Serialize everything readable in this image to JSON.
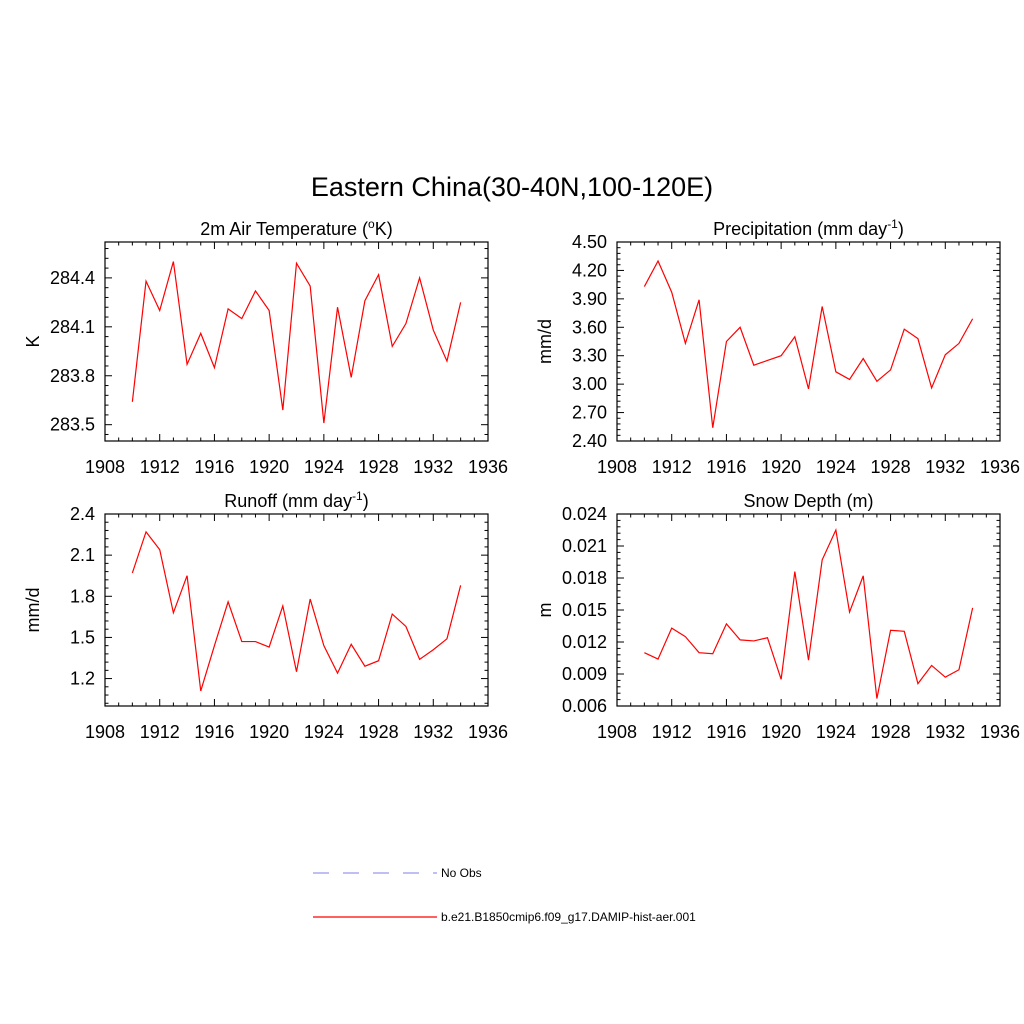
{
  "figure": {
    "title": "Eastern China(30-40N,100-120E)"
  },
  "legend": {
    "entries": [
      {
        "label": "No Obs",
        "color": "#9999ee",
        "style": "dashed"
      },
      {
        "label": "b.e21.B1850cmip6.f09_g17.DAMIP-hist-aer.001",
        "color": "#ff0000",
        "style": "solid"
      }
    ]
  },
  "chart_data": [
    {
      "type": "line",
      "title": "2m Air Temperature (°K)",
      "title_parts": [
        "2m Air Temperature (",
        "o",
        "K)"
      ],
      "xlabel": "",
      "ylabel": "K",
      "xlim": [
        1908,
        1936
      ],
      "ylim": [
        283.4,
        284.62
      ],
      "xticks": [
        1908,
        1912,
        1916,
        1920,
        1924,
        1928,
        1932,
        1936
      ],
      "yticks": [
        283.5,
        283.8,
        284.1,
        284.4
      ],
      "ytick_labels": [
        "283.5",
        "283.8",
        "284.1",
        "284.4"
      ],
      "grid": false,
      "series": [
        {
          "name": "b.e21.B1850cmip6.f09_g17.DAMIP-hist-aer.001",
          "color": "#ff0000",
          "x": [
            1910,
            1911,
            1912,
            1913,
            1914,
            1915,
            1916,
            1917,
            1918,
            1919,
            1920,
            1921,
            1922,
            1923,
            1924,
            1925,
            1926,
            1927,
            1928,
            1929,
            1930,
            1931,
            1932,
            1933,
            1934
          ],
          "y": [
            283.64,
            284.38,
            284.2,
            284.5,
            283.87,
            284.06,
            283.85,
            284.21,
            284.15,
            284.32,
            284.2,
            283.59,
            284.49,
            284.35,
            283.51,
            284.22,
            283.79,
            284.26,
            284.42,
            283.98,
            284.12,
            284.4,
            284.08,
            283.89,
            284.25
          ]
        }
      ]
    },
    {
      "type": "line",
      "title": "Precipitation (mm day-1)",
      "title_parts": [
        "Precipitation (mm day",
        "-1",
        ")"
      ],
      "xlabel": "",
      "ylabel": "mm/d",
      "xlim": [
        1908,
        1936
      ],
      "ylim": [
        2.4,
        4.5
      ],
      "xticks": [
        1908,
        1912,
        1916,
        1920,
        1924,
        1928,
        1932,
        1936
      ],
      "yticks": [
        2.4,
        2.7,
        3.0,
        3.3,
        3.6,
        3.9,
        4.2,
        4.5
      ],
      "ytick_labels": [
        "2.40",
        "2.70",
        "3.00",
        "3.30",
        "3.60",
        "3.90",
        "4.20",
        "4.50"
      ],
      "grid": false,
      "series": [
        {
          "name": "b.e21.B1850cmip6.f09_g17.DAMIP-hist-aer.001",
          "color": "#ff0000",
          "x": [
            1910,
            1911,
            1912,
            1913,
            1914,
            1915,
            1916,
            1917,
            1918,
            1919,
            1920,
            1921,
            1922,
            1923,
            1924,
            1925,
            1926,
            1927,
            1928,
            1929,
            1930,
            1931,
            1932,
            1933,
            1934
          ],
          "y": [
            4.03,
            4.3,
            3.97,
            3.43,
            3.89,
            2.54,
            3.45,
            3.6,
            3.2,
            3.25,
            3.3,
            3.5,
            2.95,
            3.82,
            3.13,
            3.05,
            3.27,
            3.03,
            3.15,
            3.58,
            3.48,
            2.96,
            3.31,
            3.43,
            3.69
          ]
        }
      ]
    },
    {
      "type": "line",
      "title": "Runoff (mm day-1)",
      "title_parts": [
        "Runoff (mm day",
        "-1",
        ")"
      ],
      "xlabel": "",
      "ylabel": "mm/d",
      "xlim": [
        1908,
        1936
      ],
      "ylim": [
        1.0,
        2.4
      ],
      "xticks": [
        1908,
        1912,
        1916,
        1920,
        1924,
        1928,
        1932,
        1936
      ],
      "yticks": [
        1.2,
        1.5,
        1.8,
        2.1,
        2.4
      ],
      "ytick_labels": [
        "1.2",
        "1.5",
        "1.8",
        "2.1",
        "2.4"
      ],
      "grid": false,
      "series": [
        {
          "name": "b.e21.B1850cmip6.f09_g17.DAMIP-hist-aer.001",
          "color": "#ff0000",
          "x": [
            1910,
            1911,
            1912,
            1913,
            1914,
            1915,
            1916,
            1917,
            1918,
            1919,
            1920,
            1921,
            1922,
            1923,
            1924,
            1925,
            1926,
            1927,
            1928,
            1929,
            1930,
            1931,
            1932,
            1933,
            1934
          ],
          "y": [
            1.97,
            2.27,
            2.14,
            1.68,
            1.95,
            1.11,
            1.44,
            1.76,
            1.47,
            1.47,
            1.43,
            1.73,
            1.25,
            1.78,
            1.44,
            1.24,
            1.45,
            1.29,
            1.33,
            1.67,
            1.58,
            1.34,
            1.41,
            1.49,
            1.88
          ]
        }
      ]
    },
    {
      "type": "line",
      "title": "Snow Depth (m)",
      "title_parts": [
        "Snow Depth (m)",
        "",
        ""
      ],
      "xlabel": "",
      "ylabel": "m",
      "xlim": [
        1908,
        1936
      ],
      "ylim": [
        0.006,
        0.024
      ],
      "xticks": [
        1908,
        1912,
        1916,
        1920,
        1924,
        1928,
        1932,
        1936
      ],
      "yticks": [
        0.006,
        0.009,
        0.012,
        0.015,
        0.018,
        0.021,
        0.024
      ],
      "ytick_labels": [
        "0.006",
        "0.009",
        "0.012",
        "0.015",
        "0.018",
        "0.021",
        "0.024"
      ],
      "grid": false,
      "series": [
        {
          "name": "b.e21.B1850cmip6.f09_g17.DAMIP-hist-aer.001",
          "color": "#ff0000",
          "x": [
            1910,
            1911,
            1912,
            1913,
            1914,
            1915,
            1916,
            1917,
            1918,
            1919,
            1920,
            1921,
            1922,
            1923,
            1924,
            1925,
            1926,
            1927,
            1928,
            1929,
            1930,
            1931,
            1932,
            1933,
            1934
          ],
          "y": [
            0.011,
            0.0104,
            0.0133,
            0.0125,
            0.011,
            0.0109,
            0.0137,
            0.0122,
            0.0121,
            0.0124,
            0.0085,
            0.0186,
            0.0103,
            0.0197,
            0.0225,
            0.0148,
            0.0182,
            0.0067,
            0.0131,
            0.013,
            0.0081,
            0.0098,
            0.0087,
            0.0094,
            0.0152
          ]
        }
      ]
    }
  ]
}
